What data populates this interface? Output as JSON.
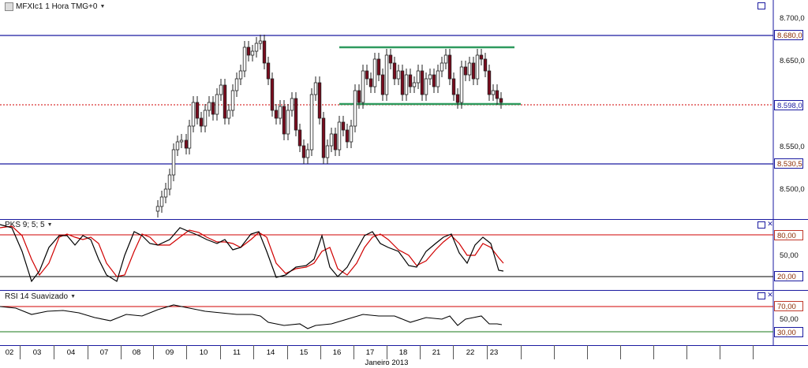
{
  "main_pane": {
    "title": "MFXIc1 1 Hora TMG+0",
    "price_levels": [
      "8.700,0",
      "8.650,0",
      "8.550,0",
      "8.500,0"
    ],
    "tags": {
      "upper_line": "8.680,0",
      "current": "8.598,0",
      "lower_line": "8.530,5"
    }
  },
  "pks_pane": {
    "title": "PKS 9; 5; 5",
    "levels": [
      "80,00",
      "50,00",
      "20,00"
    ]
  },
  "rsi_pane": {
    "title": "RSI 14 Suavizado",
    "levels": [
      "70,00",
      "50,00",
      "30,00"
    ]
  },
  "x_axis": {
    "dates": [
      "02",
      "03",
      "04",
      "07",
      "08",
      "09",
      "10",
      "11",
      "14",
      "15",
      "16",
      "17",
      "18",
      "21",
      "22",
      "23"
    ],
    "month_label": "Janeiro 2013"
  },
  "colors": {
    "candle_up": "#ffffff",
    "candle_down": "#7a0c1e",
    "support_resistance": "#1a1aa0",
    "channel": "#2e9a5e",
    "current_price": "#d00000",
    "pks_fast": "#000000",
    "pks_slow": "#d00000",
    "rsi_high": "#d00000",
    "rsi_low": "#1a7a1a"
  },
  "icons": {
    "pane_maximize": "square-icon",
    "pane_close": "close-icon",
    "title_menu": "chevron-down-icon"
  }
}
